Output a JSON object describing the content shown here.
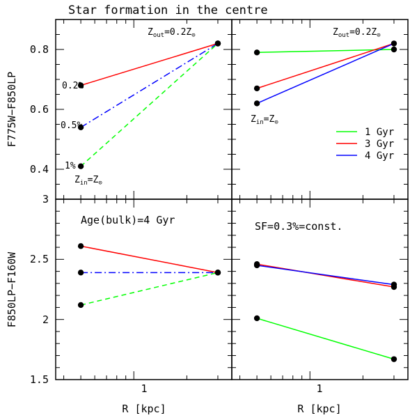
{
  "chart_data": {
    "title": "Star formation in the centre",
    "x": [
      0.5,
      3.0
    ],
    "xlabel": "R [kpc]",
    "xticklabels": [
      "1"
    ],
    "panels": [
      {
        "type": "line",
        "ylabel": "F775W−F850LP",
        "ylim": [
          0.3,
          0.9
        ],
        "yticklabels": [
          "0.4",
          "0.6",
          "0.8"
        ],
        "annotations": [
          "Z_out=0.2Z⊙",
          "Z_in=Z⊙",
          "0.2%",
          "0.5%",
          "1%"
        ],
        "series": [
          {
            "name": "0.2%",
            "style": "solid",
            "color": "#ff0000",
            "values": [
              0.68,
              0.82
            ]
          },
          {
            "name": "0.5%",
            "style": "dashdot",
            "color": "#0000ff",
            "values": [
              0.54,
              0.82
            ]
          },
          {
            "name": "1%",
            "style": "dashed",
            "color": "#00ff00",
            "values": [
              0.41,
              0.82
            ]
          }
        ]
      },
      {
        "type": "line",
        "ylim": [
          0.3,
          0.9
        ],
        "annotations": [
          "Z_out=0.2Z⊙",
          "Z_in=Z⊙"
        ],
        "series": [
          {
            "name": "1 Gyr",
            "style": "solid",
            "color": "#00ff00",
            "values": [
              0.79,
              0.8
            ]
          },
          {
            "name": "3 Gyr",
            "style": "solid",
            "color": "#ff0000",
            "values": [
              0.67,
              0.82
            ]
          },
          {
            "name": "4 Gyr",
            "style": "solid",
            "color": "#0000ff",
            "values": [
              0.62,
              0.82
            ]
          }
        ],
        "markers_right": [
          0.8,
          0.82
        ]
      },
      {
        "type": "line",
        "ylabel": "F850LP−F160W",
        "ylim": [
          1.5,
          3.0
        ],
        "yticklabels": [
          "1.5",
          "2",
          "2.5",
          "3"
        ],
        "annotations": [
          "Age(bulk)=4 Gyr"
        ],
        "series": [
          {
            "style": "solid",
            "color": "#ff0000",
            "values": [
              2.61,
              2.39
            ]
          },
          {
            "style": "dashdot",
            "color": "#0000ff",
            "values": [
              2.39,
              2.39
            ]
          },
          {
            "style": "dashed",
            "color": "#00ff00",
            "values": [
              2.12,
              2.39
            ]
          }
        ]
      },
      {
        "type": "line",
        "ylim": [
          1.5,
          3.0
        ],
        "annotations": [
          "SF=0.3%=const."
        ],
        "series": [
          {
            "style": "solid",
            "color": "#ff0000",
            "values": [
              2.46,
              2.27
            ]
          },
          {
            "style": "solid",
            "color": "#0000ff",
            "values": [
              2.45,
              2.29
            ]
          },
          {
            "style": "solid",
            "color": "#00ff00",
            "values": [
              2.01,
              1.67
            ]
          }
        ]
      }
    ],
    "legend": {
      "placement": "inside-right",
      "entries": [
        {
          "label": "1 Gyr",
          "color": "#00ff00"
        },
        {
          "label": "3 Gyr",
          "color": "#ff0000"
        },
        {
          "label": "4 Gyr",
          "color": "#0000ff"
        }
      ]
    },
    "xscale": "log",
    "grid": false
  }
}
